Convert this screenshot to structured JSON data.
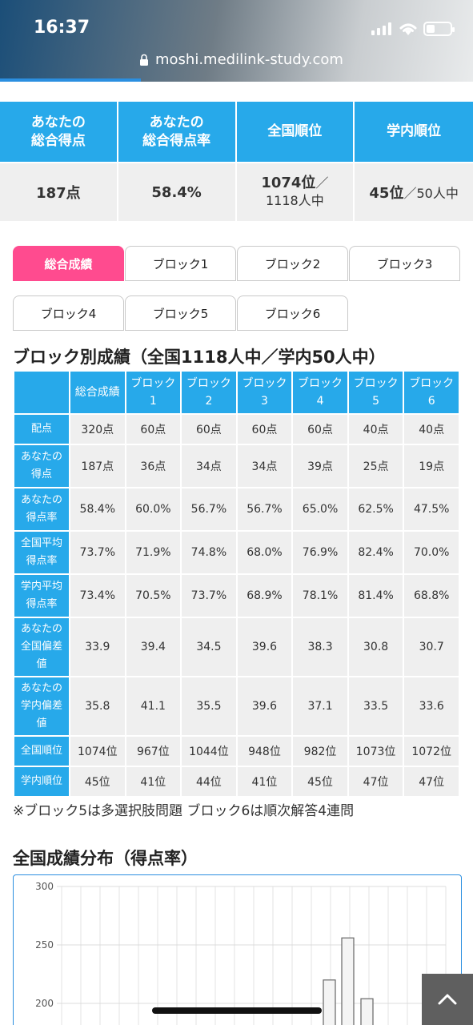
{
  "status_bar": {
    "time": "16:37"
  },
  "browser": {
    "url": "moshi.medilink-study.com"
  },
  "summary": {
    "headers": [
      "あなたの\n総合得点",
      "あなたの\n総合得点率",
      "全国順位",
      "学内順位"
    ],
    "score": "187点",
    "rate": "58.4%",
    "national_rank": "1074位",
    "national_rank_of": "1118人中",
    "school_rank": "45位",
    "school_rank_of": "50人中",
    "slash": "／"
  },
  "tabs": [
    "総合成績",
    "ブロック1",
    "ブロック2",
    "ブロック3",
    "ブロック4",
    "ブロック5",
    "ブロック6"
  ],
  "block_section": {
    "title": "ブロック別成績（全国1118人中／学内50人中）",
    "columns": [
      "総合成績",
      "ブロック\n1",
      "ブロック\n2",
      "ブロック\n3",
      "ブロック\n4",
      "ブロック\n5",
      "ブロック\n6"
    ],
    "rows": [
      {
        "label": "配点",
        "values": [
          "320点",
          "60点",
          "60点",
          "60点",
          "60点",
          "40点",
          "40点"
        ]
      },
      {
        "label": "あなたの\n得点",
        "values": [
          "187点",
          "36点",
          "34点",
          "34点",
          "39点",
          "25点",
          "19点"
        ]
      },
      {
        "label": "あなたの\n得点率",
        "values": [
          "58.4%",
          "60.0%",
          "56.7%",
          "56.7%",
          "65.0%",
          "62.5%",
          "47.5%"
        ]
      },
      {
        "label": "全国平均\n得点率",
        "values": [
          "73.7%",
          "71.9%",
          "74.8%",
          "68.0%",
          "76.9%",
          "82.4%",
          "70.0%"
        ]
      },
      {
        "label": "学内平均\n得点率",
        "values": [
          "73.4%",
          "70.5%",
          "73.7%",
          "68.9%",
          "78.1%",
          "81.4%",
          "68.8%"
        ]
      },
      {
        "label": "あなたの\n全国偏差\n値",
        "values": [
          "33.9",
          "39.4",
          "34.5",
          "39.6",
          "38.3",
          "30.8",
          "30.7"
        ]
      },
      {
        "label": "あなたの\n学内偏差\n値",
        "values": [
          "35.8",
          "41.1",
          "35.5",
          "39.6",
          "37.1",
          "33.5",
          "33.6"
        ]
      },
      {
        "label": "全国順位",
        "values": [
          "1074位",
          "967位",
          "1044位",
          "948位",
          "982位",
          "1073位",
          "1072位"
        ]
      },
      {
        "label": "学内順位",
        "values": [
          "45位",
          "41位",
          "44位",
          "41位",
          "45位",
          "47位",
          "47位"
        ]
      }
    ],
    "note": "※ブロック5は多選択肢問題 ブロック6は順次解答4連問"
  },
  "distribution": {
    "title": "全国成績分布（得点率）"
  },
  "chart_data": {
    "type": "bar",
    "title": "",
    "xlabel": "",
    "ylabel": "",
    "ylim": [
      200,
      300
    ],
    "yticks": [
      300,
      250,
      200
    ],
    "grid": true,
    "values_visible": [
      220,
      256,
      204
    ]
  },
  "colors": {
    "accent_blue": "#27a9ea",
    "active_tab_pink": "#ff4b8f",
    "cell_gray": "#efefef"
  },
  "icons": {
    "lock": "lock-icon",
    "scroll_top": "chevron-up-icon"
  }
}
